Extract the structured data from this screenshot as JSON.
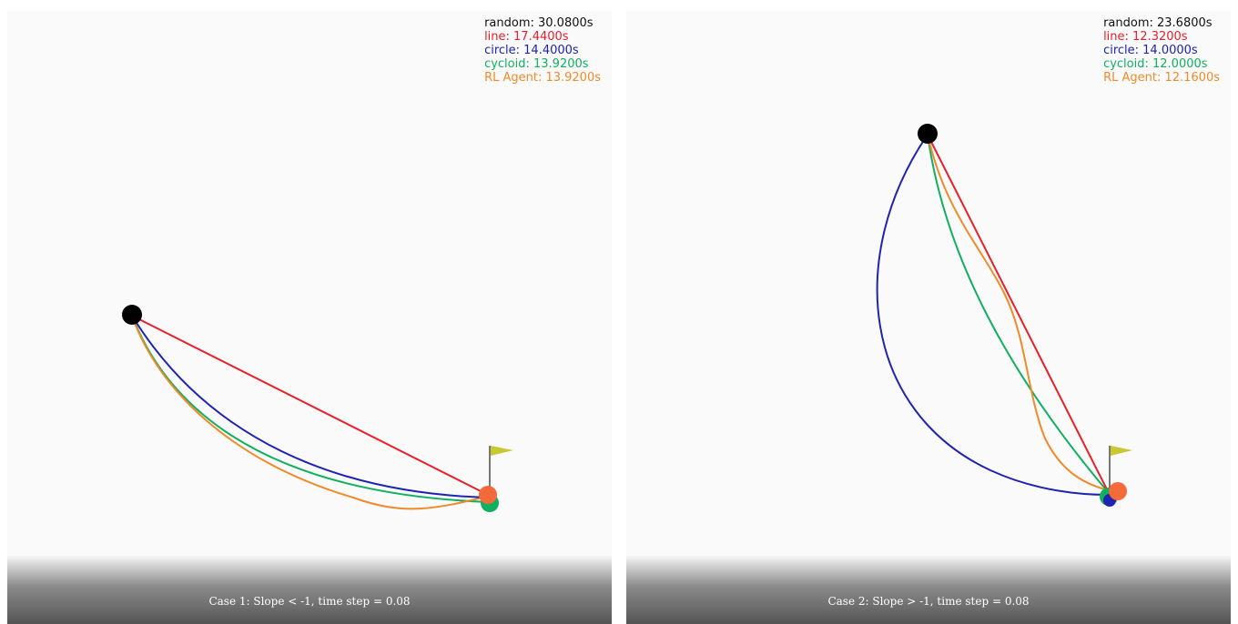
{
  "panels": [
    {
      "caption": "Case 1: Slope < -1, time step = 0.08",
      "legend": [
        {
          "label": "random: 30.0800s",
          "color": "#111111"
        },
        {
          "label": "line: 17.4400s",
          "color": "#e8202a"
        },
        {
          "label": "circle: 14.4000s",
          "color": "#1f24b0"
        },
        {
          "label": "cycloid: 13.9200s",
          "color": "#10b060"
        },
        {
          "label": "RL Agent: 13.9200s",
          "color": "#f08a2a"
        }
      ]
    },
    {
      "caption": "Case 2: Slope > -1, time step = 0.08",
      "legend": [
        {
          "label": "random: 23.6800s",
          "color": "#111111"
        },
        {
          "label": "line: 12.3200s",
          "color": "#e8202a"
        },
        {
          "label": "circle: 14.0000s",
          "color": "#1f24b0"
        },
        {
          "label": "cycloid: 12.0000s",
          "color": "#10b060"
        },
        {
          "label": "RL Agent: 12.1600s",
          "color": "#f08a2a"
        }
      ]
    }
  ],
  "colors": {
    "start_ball": "#000000",
    "flag": "#c8c832",
    "line": "#e8202a",
    "circle": "#1f24b0",
    "cycloid": "#10b060",
    "rl_agent": "#f08a2a"
  }
}
